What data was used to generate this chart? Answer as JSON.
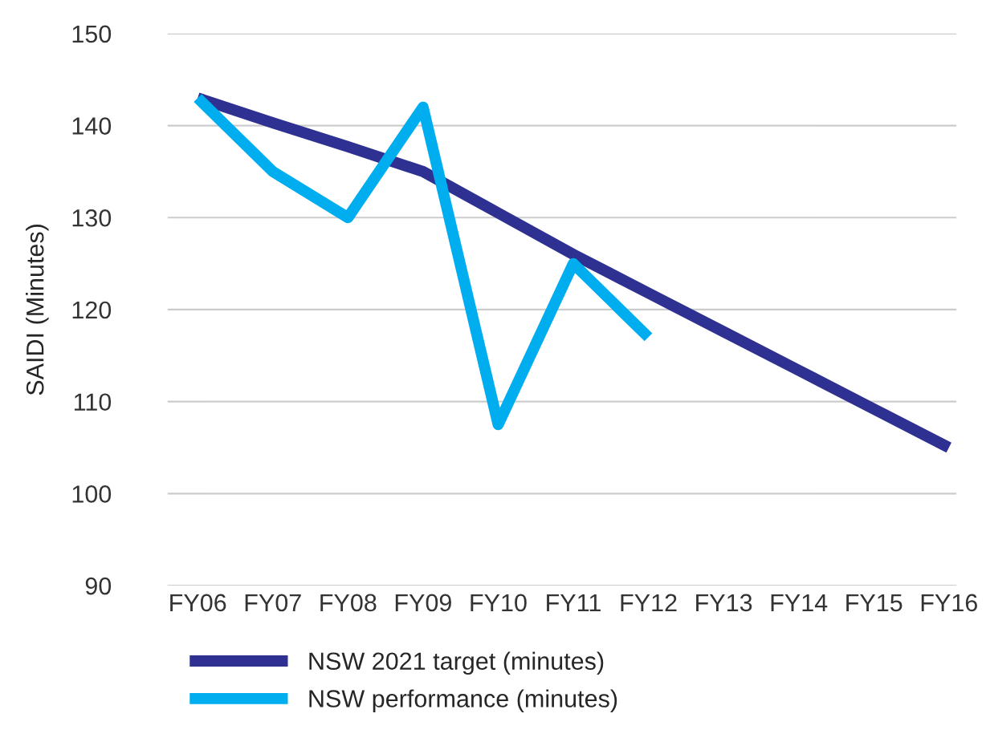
{
  "chart_data": {
    "type": "line",
    "ylabel": "SAIDI (Minutes)",
    "categories": [
      "FY06",
      "FY07",
      "FY08",
      "FY09",
      "FY10",
      "FY11",
      "FY12",
      "FY13",
      "FY14",
      "FY15",
      "FY16"
    ],
    "series": [
      {
        "name": "NSW 2021 target (minutes)",
        "color": "#2e3192",
        "values": [
          143,
          140.3,
          137.7,
          135,
          130.5,
          126,
          121.8,
          117.6,
          113.4,
          109.2,
          105
        ]
      },
      {
        "name": "NSW performance (minutes)",
        "color": "#00aeef",
        "values": [
          143,
          135,
          130,
          142,
          107.5,
          125,
          117,
          null,
          null,
          null,
          null
        ]
      }
    ],
    "ylim": [
      90,
      150
    ],
    "yticks": [
      90,
      100,
      110,
      120,
      130,
      140,
      150
    ],
    "grid": "y",
    "legend": "bottom",
    "marker": "none",
    "line_style": "solid"
  }
}
